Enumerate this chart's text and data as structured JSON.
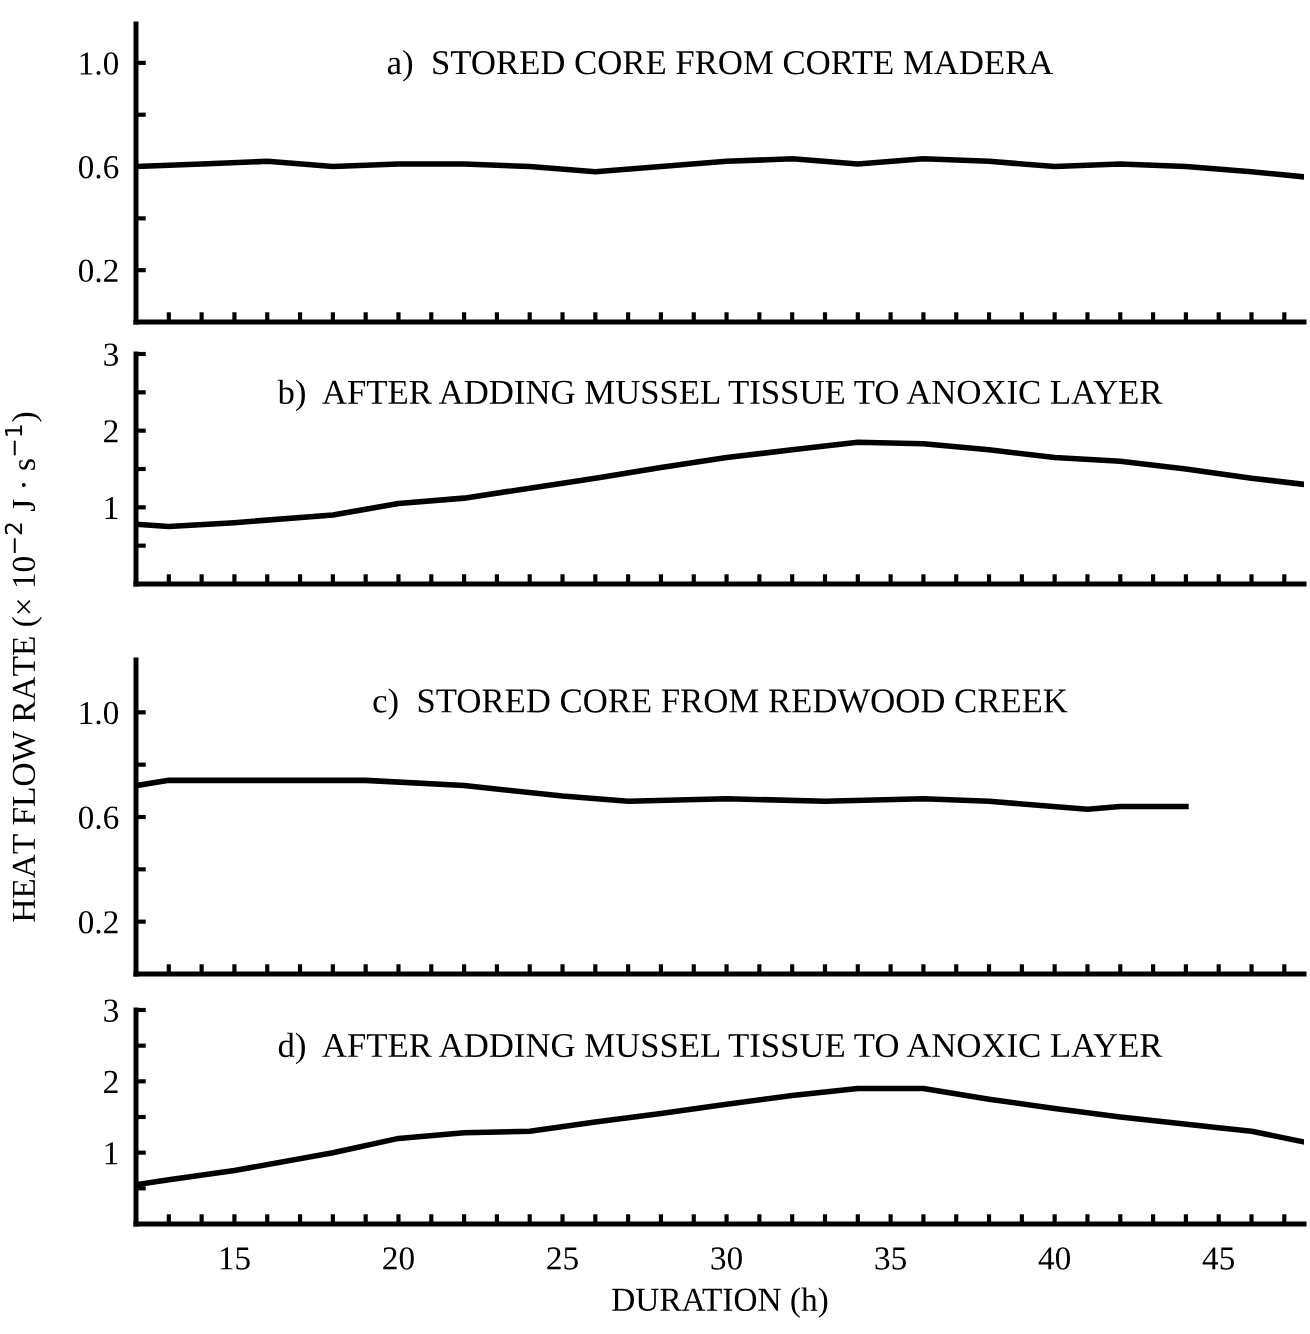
{
  "chart_data": [
    {
      "type": "line",
      "title": "a)  STORED CORE FROM CORTE MADERA",
      "ylabel": "HEAT FLOW RATE (× 10$^{−2}$ J · s$^{−1}$)",
      "x": [
        12,
        14,
        16,
        18,
        20,
        22,
        24,
        26,
        28,
        30,
        32,
        34,
        36,
        38,
        40,
        42,
        44,
        46,
        47.6
      ],
      "series": [
        {
          "color": "#000000",
          "values": [
            0.6,
            0.61,
            0.62,
            0.6,
            0.61,
            0.61,
            0.6,
            0.58,
            0.6,
            0.62,
            0.63,
            0.61,
            0.63,
            0.62,
            0.6,
            0.61,
            0.6,
            0.58,
            0.56
          ]
        }
      ],
      "xlim": [
        12,
        47.6
      ],
      "ylim": [
        0,
        1.15
      ],
      "xticks": [
        {
          "value": 13,
          "label": null
        },
        {
          "value": 14,
          "label": null
        },
        {
          "value": 15,
          "label": null
        },
        {
          "value": 16,
          "label": null
        },
        {
          "value": 17,
          "label": null
        },
        {
          "value": 18,
          "label": null
        },
        {
          "value": 19,
          "label": null
        },
        {
          "value": 20,
          "label": null
        },
        {
          "value": 21,
          "label": null
        },
        {
          "value": 22,
          "label": null
        },
        {
          "value": 23,
          "label": null
        },
        {
          "value": 24,
          "label": null
        },
        {
          "value": 25,
          "label": null
        },
        {
          "value": 26,
          "label": null
        },
        {
          "value": 27,
          "label": null
        },
        {
          "value": 28,
          "label": null
        },
        {
          "value": 29,
          "label": null
        },
        {
          "value": 30,
          "label": null
        },
        {
          "value": 31,
          "label": null
        },
        {
          "value": 32,
          "label": null
        },
        {
          "value": 33,
          "label": null
        },
        {
          "value": 34,
          "label": null
        },
        {
          "value": 35,
          "label": null
        },
        {
          "value": 36,
          "label": null
        },
        {
          "value": 37,
          "label": null
        },
        {
          "value": 38,
          "label": null
        },
        {
          "value": 39,
          "label": null
        },
        {
          "value": 40,
          "label": null
        },
        {
          "value": 41,
          "label": null
        },
        {
          "value": 42,
          "label": null
        },
        {
          "value": 43,
          "label": null
        },
        {
          "value": 44,
          "label": null
        },
        {
          "value": 45,
          "label": null
        },
        {
          "value": 46,
          "label": null
        },
        {
          "value": 47,
          "label": null
        }
      ],
      "yticks": [
        0.2,
        {
          "value": 0.4,
          "label": null
        },
        0.6,
        {
          "value": 0.8,
          "label": null
        },
        {
          "value": 1.0,
          "label": "1.0"
        }
      ],
      "tick_labels": "y",
      "grid": false,
      "legend": false
    },
    {
      "type": "line",
      "title": "b)  AFTER ADDING MUSSEL TISSUE TO ANOXIC LAYER",
      "x": [
        12,
        13,
        15,
        18,
        20,
        22,
        24,
        26,
        28,
        30,
        32,
        34,
        36,
        38,
        40,
        42,
        44,
        46,
        47.6
      ],
      "series": [
        {
          "color": "#000000",
          "values": [
            0.78,
            0.75,
            0.8,
            0.9,
            1.05,
            1.12,
            1.25,
            1.38,
            1.52,
            1.65,
            1.75,
            1.85,
            1.83,
            1.75,
            1.65,
            1.6,
            1.5,
            1.38,
            1.3
          ]
        }
      ],
      "xlim": [
        12,
        47.6
      ],
      "ylim": [
        0,
        3
      ],
      "xticks": [
        {
          "value": 13,
          "label": null
        },
        {
          "value": 14,
          "label": null
        },
        {
          "value": 15,
          "label": null
        },
        {
          "value": 16,
          "label": null
        },
        {
          "value": 17,
          "label": null
        },
        {
          "value": 18,
          "label": null
        },
        {
          "value": 19,
          "label": null
        },
        {
          "value": 20,
          "label": null
        },
        {
          "value": 21,
          "label": null
        },
        {
          "value": 22,
          "label": null
        },
        {
          "value": 23,
          "label": null
        },
        {
          "value": 24,
          "label": null
        },
        {
          "value": 25,
          "label": null
        },
        {
          "value": 26,
          "label": null
        },
        {
          "value": 27,
          "label": null
        },
        {
          "value": 28,
          "label": null
        },
        {
          "value": 29,
          "label": null
        },
        {
          "value": 30,
          "label": null
        },
        {
          "value": 31,
          "label": null
        },
        {
          "value": 32,
          "label": null
        },
        {
          "value": 33,
          "label": null
        },
        {
          "value": 34,
          "label": null
        },
        {
          "value": 35,
          "label": null
        },
        {
          "value": 36,
          "label": null
        },
        {
          "value": 37,
          "label": null
        },
        {
          "value": 38,
          "label": null
        },
        {
          "value": 39,
          "label": null
        },
        {
          "value": 40,
          "label": null
        },
        {
          "value": 41,
          "label": null
        },
        {
          "value": 42,
          "label": null
        },
        {
          "value": 43,
          "label": null
        },
        {
          "value": 44,
          "label": null
        },
        {
          "value": 45,
          "label": null
        },
        {
          "value": 46,
          "label": null
        },
        {
          "value": 47,
          "label": null
        }
      ],
      "yticks": [
        {
          "value": 0.5,
          "label": null
        },
        1,
        {
          "value": 1.5,
          "label": null
        },
        2,
        {
          "value": 2.5,
          "label": null
        },
        3
      ],
      "tick_labels": "y",
      "grid": false,
      "legend": false
    },
    {
      "type": "line",
      "title": "c)  STORED CORE FROM REDWOOD CREEK",
      "x": [
        12,
        13,
        16,
        19,
        22,
        25,
        27,
        30,
        33,
        36,
        38,
        41,
        42,
        44
      ],
      "series": [
        {
          "color": "#000000",
          "values": [
            0.72,
            0.74,
            0.74,
            0.74,
            0.72,
            0.68,
            0.66,
            0.67,
            0.66,
            0.67,
            0.66,
            0.63,
            0.64,
            0.64
          ]
        }
      ],
      "xlim": [
        12,
        47.6
      ],
      "ylim": [
        0,
        1.2
      ],
      "xticks": [
        {
          "value": 13,
          "label": null
        },
        {
          "value": 14,
          "label": null
        },
        {
          "value": 15,
          "label": null
        },
        {
          "value": 16,
          "label": null
        },
        {
          "value": 17,
          "label": null
        },
        {
          "value": 18,
          "label": null
        },
        {
          "value": 19,
          "label": null
        },
        {
          "value": 20,
          "label": null
        },
        {
          "value": 21,
          "label": null
        },
        {
          "value": 22,
          "label": null
        },
        {
          "value": 23,
          "label": null
        },
        {
          "value": 24,
          "label": null
        },
        {
          "value": 25,
          "label": null
        },
        {
          "value": 26,
          "label": null
        },
        {
          "value": 27,
          "label": null
        },
        {
          "value": 28,
          "label": null
        },
        {
          "value": 29,
          "label": null
        },
        {
          "value": 30,
          "label": null
        },
        {
          "value": 31,
          "label": null
        },
        {
          "value": 32,
          "label": null
        },
        {
          "value": 33,
          "label": null
        },
        {
          "value": 34,
          "label": null
        },
        {
          "value": 35,
          "label": null
        },
        {
          "value": 36,
          "label": null
        },
        {
          "value": 37,
          "label": null
        },
        {
          "value": 38,
          "label": null
        },
        {
          "value": 39,
          "label": null
        },
        {
          "value": 40,
          "label": null
        },
        {
          "value": 41,
          "label": null
        },
        {
          "value": 42,
          "label": null
        },
        {
          "value": 43,
          "label": null
        },
        {
          "value": 44,
          "label": null
        },
        {
          "value": 45,
          "label": null
        },
        {
          "value": 46,
          "label": null
        },
        {
          "value": 47,
          "label": null
        }
      ],
      "yticks": [
        0.2,
        {
          "value": 0.4,
          "label": null
        },
        0.6,
        {
          "value": 0.8,
          "label": null
        },
        {
          "value": 1.0,
          "label": "1.0"
        }
      ],
      "tick_labels": "y",
      "grid": false,
      "legend": false
    },
    {
      "type": "line",
      "title": "d)  AFTER ADDING MUSSEL TISSUE TO ANOXIC LAYER",
      "xlabel": "DURATION (h)",
      "x": [
        12,
        13,
        15,
        18,
        20,
        22,
        24,
        26,
        28,
        30,
        32,
        34,
        36,
        38,
        40,
        42,
        45,
        46,
        47.6
      ],
      "series": [
        {
          "color": "#000000",
          "values": [
            0.55,
            0.62,
            0.75,
            1.0,
            1.2,
            1.28,
            1.3,
            1.43,
            1.55,
            1.68,
            1.8,
            1.9,
            1.9,
            1.75,
            1.62,
            1.5,
            1.35,
            1.3,
            1.15
          ]
        }
      ],
      "xlim": [
        12,
        47.6
      ],
      "ylim": [
        0,
        3
      ],
      "xticks": [
        {
          "value": 13,
          "label": null
        },
        {
          "value": 14,
          "label": null
        },
        15,
        {
          "value": 16,
          "label": null
        },
        {
          "value": 17,
          "label": null
        },
        {
          "value": 18,
          "label": null
        },
        {
          "value": 19,
          "label": null
        },
        20,
        {
          "value": 21,
          "label": null
        },
        {
          "value": 22,
          "label": null
        },
        {
          "value": 23,
          "label": null
        },
        {
          "value": 24,
          "label": null
        },
        25,
        {
          "value": 26,
          "label": null
        },
        {
          "value": 27,
          "label": null
        },
        {
          "value": 28,
          "label": null
        },
        {
          "value": 29,
          "label": null
        },
        30,
        {
          "value": 31,
          "label": null
        },
        {
          "value": 32,
          "label": null
        },
        {
          "value": 33,
          "label": null
        },
        {
          "value": 34,
          "label": null
        },
        35,
        {
          "value": 36,
          "label": null
        },
        {
          "value": 37,
          "label": null
        },
        {
          "value": 38,
          "label": null
        },
        {
          "value": 39,
          "label": null
        },
        40,
        {
          "value": 41,
          "label": null
        },
        {
          "value": 42,
          "label": null
        },
        {
          "value": 43,
          "label": null
        },
        {
          "value": 44,
          "label": null
        },
        45,
        {
          "value": 46,
          "label": null
        },
        {
          "value": 47,
          "label": null
        }
      ],
      "yticks": [
        {
          "value": 0.5,
          "label": null
        },
        1,
        {
          "value": 1.5,
          "label": null
        },
        2,
        {
          "value": 2.5,
          "label": null
        },
        3
      ],
      "grid": false,
      "legend": false
    }
  ]
}
